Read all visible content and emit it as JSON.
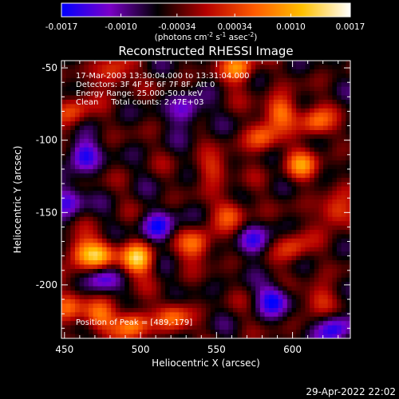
{
  "chart_data": {
    "type": "heatmap",
    "title": "Reconstructed RHESSI Image",
    "xlabel": "Heliocentric X (arcsec)",
    "ylabel": "Heliocentric Y (arcsec)",
    "xlim": [
      448,
      638
    ],
    "ylim": [
      -237,
      -45
    ],
    "x_ticks": [
      "450",
      "500",
      "550",
      "600"
    ],
    "y_ticks": [
      "-50",
      "-100",
      "-150",
      "-200"
    ],
    "x_tick_values": [
      450,
      500,
      550,
      600
    ],
    "y_tick_values": [
      -50,
      -100,
      -150,
      -200
    ],
    "colorbar": {
      "range": [
        -0.0017,
        0.0017
      ],
      "tick_labels": [
        "-0.0017",
        "-0.0010",
        "-0.00034",
        "0.00034",
        "0.0010",
        "0.0017"
      ],
      "tick_values": [
        -0.0017,
        -0.001,
        -0.00034,
        0.00034,
        0.001,
        0.0017
      ],
      "units_label": "(photons cm",
      "units_exp1": "-2",
      "units_mid": " s",
      "units_exp2": "-1",
      "units_mid2": " asec",
      "units_exp3": "-2",
      "units_end": ")",
      "colors": [
        "#0000ff",
        "#7a00c8",
        "#000000",
        "#b40000",
        "#ff5a00",
        "#ffc000",
        "#ffffff"
      ]
    },
    "info_lines": [
      "17-Mar-2003 13:30:04.000 to 13:31:04.000",
      "Detectors: 3F 4F 5F 6F 7F 8F, Att 0",
      "Energy Range: 25.000-50.0 keV",
      "Clean     Total counts: 2.47E+03"
    ],
    "peak_label": "Position of Peak = [489,-179]",
    "peak": [
      489,
      -179
    ],
    "bright_sources": [
      {
        "x": 498,
        "y": -182,
        "v": 0.0017
      },
      {
        "x": 473,
        "y": -180,
        "v": 0.0013
      },
      {
        "x": 460,
        "y": -178,
        "v": 0.0011
      },
      {
        "x": 537,
        "y": -172,
        "v": 0.0012
      },
      {
        "x": 472,
        "y": -222,
        "v": 0.0011
      },
      {
        "x": 495,
        "y": -227,
        "v": 0.0013
      },
      {
        "x": 522,
        "y": -223,
        "v": 0.001
      },
      {
        "x": 452,
        "y": -215,
        "v": 0.0009
      },
      {
        "x": 565,
        "y": -50,
        "v": 0.0013
      },
      {
        "x": 482,
        "y": -54,
        "v": 0.001
      },
      {
        "x": 592,
        "y": -80,
        "v": 0.0012
      },
      {
        "x": 615,
        "y": -88,
        "v": 0.0011
      },
      {
        "x": 606,
        "y": -118,
        "v": 0.0011
      },
      {
        "x": 580,
        "y": -99,
        "v": 0.001
      },
      {
        "x": 628,
        "y": -150,
        "v": 0.0011
      },
      {
        "x": 560,
        "y": -150,
        "v": 0.0009
      },
      {
        "x": 600,
        "y": -175,
        "v": 0.0009
      },
      {
        "x": 548,
        "y": -120,
        "v": 0.0008
      },
      {
        "x": 456,
        "y": -80,
        "v": 0.0009
      },
      {
        "x": 618,
        "y": -210,
        "v": 0.0008
      }
    ],
    "dim_sources": [
      {
        "x": 462,
        "y": -110,
        "v": -0.0012
      },
      {
        "x": 512,
        "y": -160,
        "v": -0.0011
      },
      {
        "x": 452,
        "y": -142,
        "v": -0.001
      },
      {
        "x": 530,
        "y": -80,
        "v": -0.001
      },
      {
        "x": 588,
        "y": -210,
        "v": -0.0011
      },
      {
        "x": 628,
        "y": -230,
        "v": -0.0012
      },
      {
        "x": 475,
        "y": -195,
        "v": -0.0009
      },
      {
        "x": 575,
        "y": -170,
        "v": -0.0009
      }
    ]
  },
  "footer": {
    "date": "29-Apr-2022 22:02"
  }
}
